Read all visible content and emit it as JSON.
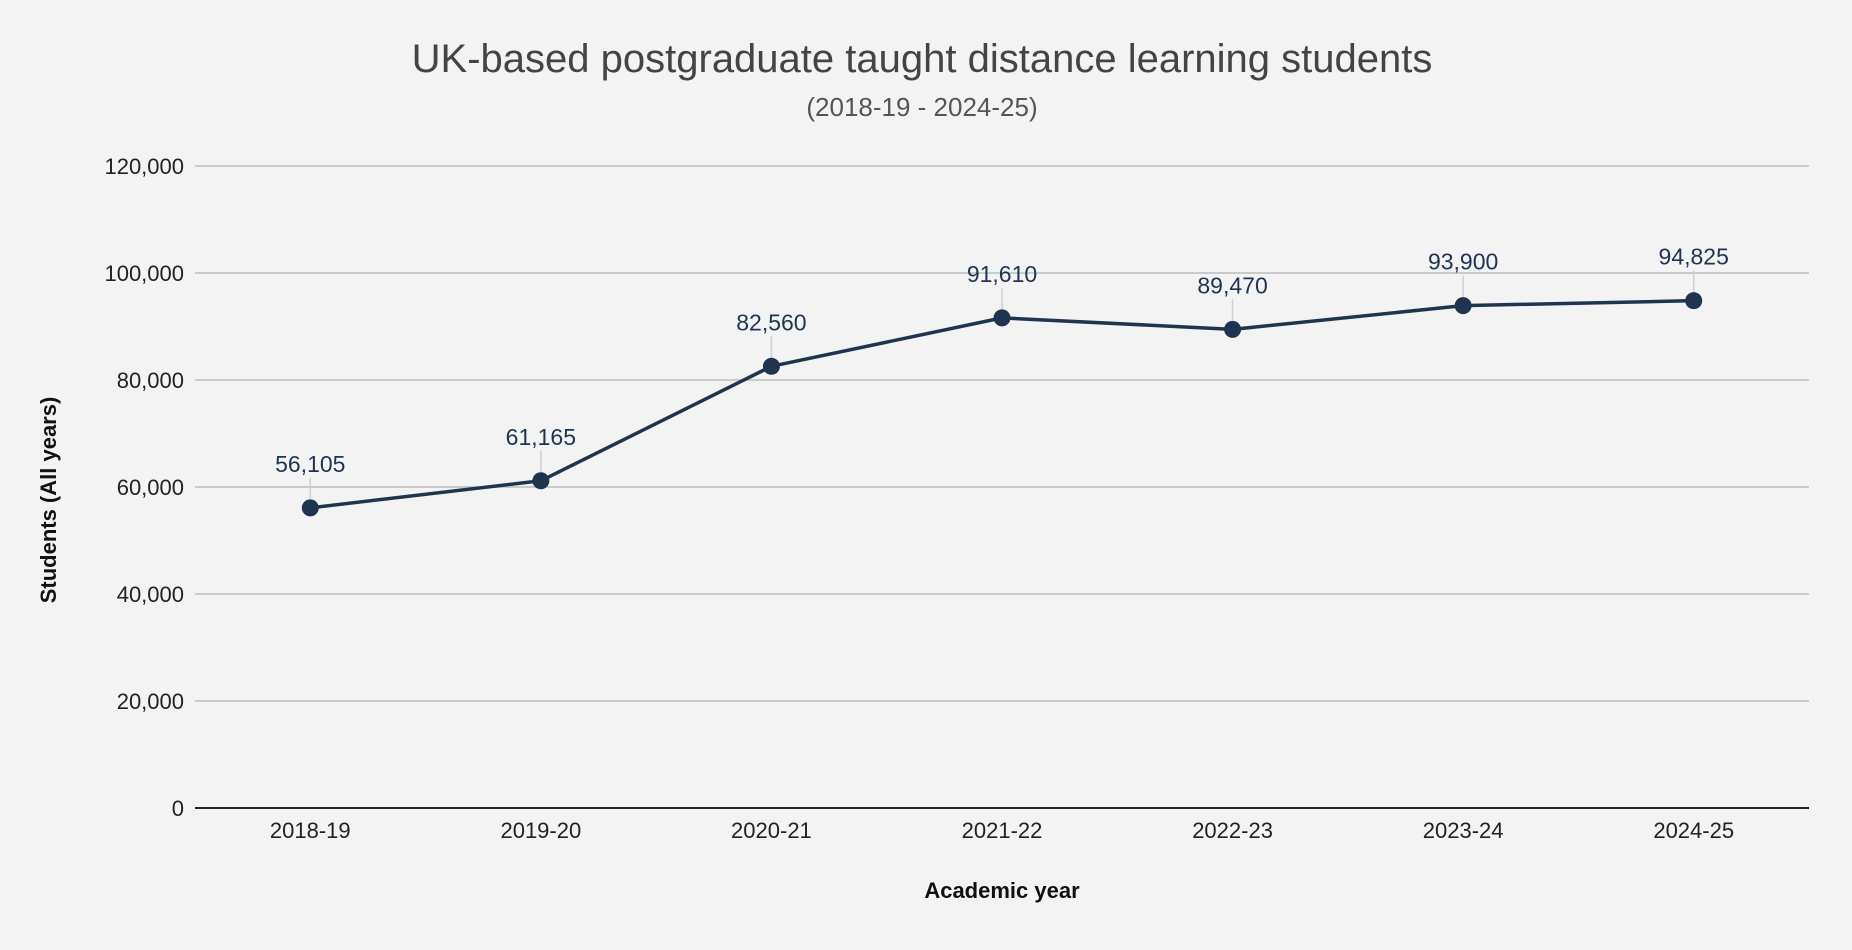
{
  "chart_data": {
    "type": "line",
    "title": "UK-based postgraduate taught distance learning students",
    "subtitle": "(2018-19 - 2024-25)",
    "xlabel": "Academic year",
    "ylabel": "Students (All years)",
    "ylim": [
      0,
      120000
    ],
    "yticks": [
      0,
      20000,
      40000,
      60000,
      80000,
      100000,
      120000
    ],
    "ytick_labels": [
      "0",
      "20,000",
      "40,000",
      "60,000",
      "80,000",
      "100,000",
      "120,000"
    ],
    "categories": [
      "2018-19",
      "2019-20",
      "2020-21",
      "2021-22",
      "2022-23",
      "2023-24",
      "2024-25"
    ],
    "values": [
      56105,
      61165,
      82560,
      91610,
      89470,
      93900,
      94825
    ],
    "value_labels": [
      "56,105",
      "61,165",
      "82,560",
      "91,610",
      "89,470",
      "93,900",
      "94,825"
    ],
    "grid": true,
    "legend": "none",
    "colors": {
      "series": "#1f3450",
      "grid": "#bdbdbd",
      "background": "#f3f3f3"
    }
  }
}
